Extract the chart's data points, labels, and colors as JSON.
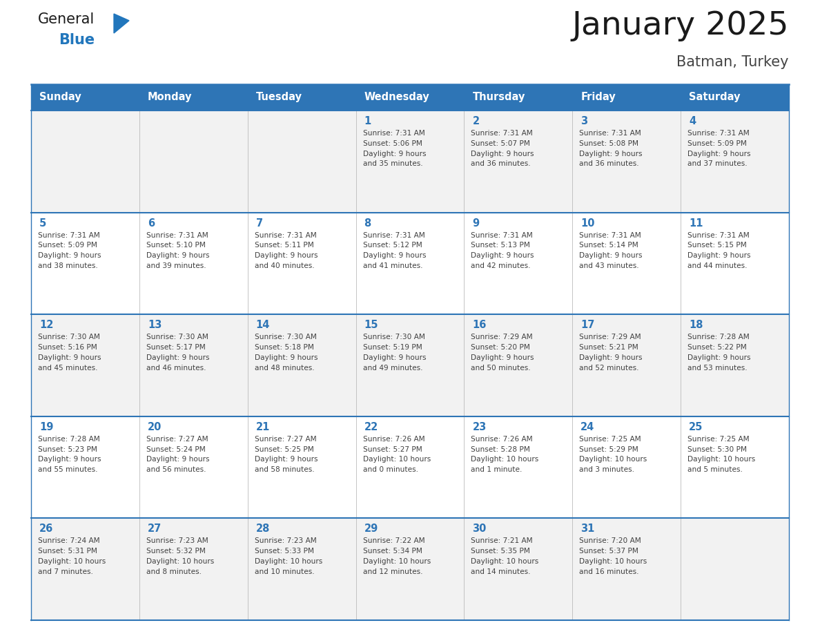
{
  "title": "January 2025",
  "subtitle": "Batman, Turkey",
  "days_of_week": [
    "Sunday",
    "Monday",
    "Tuesday",
    "Wednesday",
    "Thursday",
    "Friday",
    "Saturday"
  ],
  "header_bg": "#2E75B6",
  "header_text": "#FFFFFF",
  "row_bg_odd": "#F2F2F2",
  "row_bg_even": "#FFFFFF",
  "day_num_color": "#2E75B6",
  "cell_text_color": "#404040",
  "border_color": "#2E75B6",
  "logo_general_color": "#1a1a1a",
  "logo_blue_color": "#2176BC",
  "title_color": "#1a1a1a",
  "subtitle_color": "#444444",
  "calendar": [
    [
      {
        "day": "",
        "sunrise": "",
        "sunset": "",
        "daylight": ""
      },
      {
        "day": "",
        "sunrise": "",
        "sunset": "",
        "daylight": ""
      },
      {
        "day": "",
        "sunrise": "",
        "sunset": "",
        "daylight": ""
      },
      {
        "day": "1",
        "sunrise": "7:31 AM",
        "sunset": "5:06 PM",
        "daylight": "9 hours and 35 minutes."
      },
      {
        "day": "2",
        "sunrise": "7:31 AM",
        "sunset": "5:07 PM",
        "daylight": "9 hours and 36 minutes."
      },
      {
        "day": "3",
        "sunrise": "7:31 AM",
        "sunset": "5:08 PM",
        "daylight": "9 hours and 36 minutes."
      },
      {
        "day": "4",
        "sunrise": "7:31 AM",
        "sunset": "5:09 PM",
        "daylight": "9 hours and 37 minutes."
      }
    ],
    [
      {
        "day": "5",
        "sunrise": "7:31 AM",
        "sunset": "5:09 PM",
        "daylight": "9 hours and 38 minutes."
      },
      {
        "day": "6",
        "sunrise": "7:31 AM",
        "sunset": "5:10 PM",
        "daylight": "9 hours and 39 minutes."
      },
      {
        "day": "7",
        "sunrise": "7:31 AM",
        "sunset": "5:11 PM",
        "daylight": "9 hours and 40 minutes."
      },
      {
        "day": "8",
        "sunrise": "7:31 AM",
        "sunset": "5:12 PM",
        "daylight": "9 hours and 41 minutes."
      },
      {
        "day": "9",
        "sunrise": "7:31 AM",
        "sunset": "5:13 PM",
        "daylight": "9 hours and 42 minutes."
      },
      {
        "day": "10",
        "sunrise": "7:31 AM",
        "sunset": "5:14 PM",
        "daylight": "9 hours and 43 minutes."
      },
      {
        "day": "11",
        "sunrise": "7:31 AM",
        "sunset": "5:15 PM",
        "daylight": "9 hours and 44 minutes."
      }
    ],
    [
      {
        "day": "12",
        "sunrise": "7:30 AM",
        "sunset": "5:16 PM",
        "daylight": "9 hours and 45 minutes."
      },
      {
        "day": "13",
        "sunrise": "7:30 AM",
        "sunset": "5:17 PM",
        "daylight": "9 hours and 46 minutes."
      },
      {
        "day": "14",
        "sunrise": "7:30 AM",
        "sunset": "5:18 PM",
        "daylight": "9 hours and 48 minutes."
      },
      {
        "day": "15",
        "sunrise": "7:30 AM",
        "sunset": "5:19 PM",
        "daylight": "9 hours and 49 minutes."
      },
      {
        "day": "16",
        "sunrise": "7:29 AM",
        "sunset": "5:20 PM",
        "daylight": "9 hours and 50 minutes."
      },
      {
        "day": "17",
        "sunrise": "7:29 AM",
        "sunset": "5:21 PM",
        "daylight": "9 hours and 52 minutes."
      },
      {
        "day": "18",
        "sunrise": "7:28 AM",
        "sunset": "5:22 PM",
        "daylight": "9 hours and 53 minutes."
      }
    ],
    [
      {
        "day": "19",
        "sunrise": "7:28 AM",
        "sunset": "5:23 PM",
        "daylight": "9 hours and 55 minutes."
      },
      {
        "day": "20",
        "sunrise": "7:27 AM",
        "sunset": "5:24 PM",
        "daylight": "9 hours and 56 minutes."
      },
      {
        "day": "21",
        "sunrise": "7:27 AM",
        "sunset": "5:25 PM",
        "daylight": "9 hours and 58 minutes."
      },
      {
        "day": "22",
        "sunrise": "7:26 AM",
        "sunset": "5:27 PM",
        "daylight": "10 hours and 0 minutes."
      },
      {
        "day": "23",
        "sunrise": "7:26 AM",
        "sunset": "5:28 PM",
        "daylight": "10 hours and 1 minute."
      },
      {
        "day": "24",
        "sunrise": "7:25 AM",
        "sunset": "5:29 PM",
        "daylight": "10 hours and 3 minutes."
      },
      {
        "day": "25",
        "sunrise": "7:25 AM",
        "sunset": "5:30 PM",
        "daylight": "10 hours and 5 minutes."
      }
    ],
    [
      {
        "day": "26",
        "sunrise": "7:24 AM",
        "sunset": "5:31 PM",
        "daylight": "10 hours and 7 minutes."
      },
      {
        "day": "27",
        "sunrise": "7:23 AM",
        "sunset": "5:32 PM",
        "daylight": "10 hours and 8 minutes."
      },
      {
        "day": "28",
        "sunrise": "7:23 AM",
        "sunset": "5:33 PM",
        "daylight": "10 hours and 10 minutes."
      },
      {
        "day": "29",
        "sunrise": "7:22 AM",
        "sunset": "5:34 PM",
        "daylight": "10 hours and 12 minutes."
      },
      {
        "day": "30",
        "sunrise": "7:21 AM",
        "sunset": "5:35 PM",
        "daylight": "10 hours and 14 minutes."
      },
      {
        "day": "31",
        "sunrise": "7:20 AM",
        "sunset": "5:37 PM",
        "daylight": "10 hours and 16 minutes."
      },
      {
        "day": "",
        "sunrise": "",
        "sunset": "",
        "daylight": ""
      }
    ]
  ]
}
